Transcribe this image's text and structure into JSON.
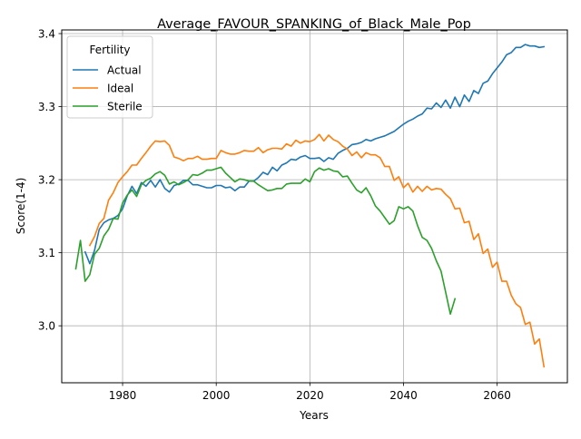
{
  "chart_data": {
    "type": "line",
    "title": "Average_FAVOUR_SPANKING_of_Black_Male_Pop",
    "xlabel": "Years",
    "ylabel": "Score(1-4)",
    "xlim": [
      1967,
      2075
    ],
    "ylim": [
      2.922,
      3.405
    ],
    "x_ticks": [
      1980,
      2000,
      2020,
      2040,
      2060
    ],
    "y_ticks": [
      3.0,
      3.1,
      3.2,
      3.3,
      3.4
    ],
    "x_tick_labels": [
      "1980",
      "2000",
      "2020",
      "2040",
      "2060"
    ],
    "y_tick_labels": [
      "3.0",
      "3.1",
      "3.2",
      "3.3",
      "3.4"
    ],
    "grid": true,
    "legend": {
      "title": "Fertility",
      "placement": "top-left"
    },
    "series": [
      {
        "name": "Actual",
        "color": "#1f77b4",
        "x": [
          1972,
          1973,
          1974,
          1975,
          1976,
          1977,
          1978,
          1979,
          1980,
          1981,
          1982,
          1983,
          1984,
          1985,
          1986,
          1987,
          1988,
          1989,
          1990,
          1991,
          1992,
          1993,
          1994,
          1995,
          1996,
          1997,
          1998,
          1999,
          2000,
          2001,
          2002,
          2003,
          2004,
          2005,
          2006,
          2007,
          2008,
          2009,
          2010,
          2011,
          2012,
          2013,
          2014,
          2015,
          2016,
          2017,
          2018,
          2019,
          2020,
          2021,
          2022,
          2023,
          2024,
          2025,
          2026,
          2027,
          2028,
          2029,
          2030,
          2031,
          2032,
          2033,
          2034,
          2035,
          2036,
          2037,
          2038,
          2039,
          2040,
          2041,
          2042,
          2043,
          2044,
          2045,
          2046,
          2047,
          2048,
          2049,
          2050,
          2051,
          2052,
          2053,
          2054,
          2055,
          2056,
          2057,
          2058,
          2059,
          2060,
          2061,
          2062,
          2063,
          2064,
          2065,
          2066,
          2067,
          2068,
          2069,
          2070
        ],
        "values": [
          3.101,
          3.085,
          3.103,
          3.132,
          3.141,
          3.145,
          3.147,
          3.151,
          3.16,
          3.178,
          3.191,
          3.181,
          3.196,
          3.191,
          3.199,
          3.19,
          3.2,
          3.188,
          3.183,
          3.192,
          3.194,
          3.199,
          3.199,
          3.193,
          3.193,
          3.191,
          3.189,
          3.189,
          3.192,
          3.192,
          3.189,
          3.19,
          3.185,
          3.19,
          3.19,
          3.198,
          3.198,
          3.203,
          3.21,
          3.207,
          3.217,
          3.212,
          3.22,
          3.223,
          3.228,
          3.227,
          3.231,
          3.233,
          3.229,
          3.229,
          3.23,
          3.225,
          3.23,
          3.228,
          3.236,
          3.24,
          3.243,
          3.248,
          3.249,
          3.251,
          3.255,
          3.253,
          3.256,
          3.258,
          3.26,
          3.263,
          3.266,
          3.271,
          3.276,
          3.28,
          3.283,
          3.287,
          3.29,
          3.298,
          3.297,
          3.305,
          3.299,
          3.309,
          3.298,
          3.313,
          3.3,
          3.316,
          3.307,
          3.322,
          3.318,
          3.332,
          3.335,
          3.345,
          3.353,
          3.361,
          3.371,
          3.374,
          3.381,
          3.381,
          3.385,
          3.383,
          3.383,
          3.381,
          3.382
        ]
      },
      {
        "name": "Ideal",
        "color": "#ff7f0e",
        "x": [
          1973,
          1974,
          1975,
          1976,
          1977,
          1978,
          1979,
          1980,
          1981,
          1982,
          1983,
          1984,
          1985,
          1986,
          1987,
          1988,
          1989,
          1990,
          1991,
          1992,
          1993,
          1994,
          1995,
          1996,
          1997,
          1998,
          1999,
          2000,
          2001,
          2002,
          2003,
          2004,
          2005,
          2006,
          2007,
          2008,
          2009,
          2010,
          2011,
          2012,
          2013,
          2014,
          2015,
          2016,
          2017,
          2018,
          2019,
          2020,
          2021,
          2022,
          2023,
          2024,
          2025,
          2026,
          2027,
          2028,
          2029,
          2030,
          2031,
          2032,
          2033,
          2034,
          2035,
          2036,
          2037,
          2038,
          2039,
          2040,
          2041,
          2042,
          2043,
          2044,
          2045,
          2046,
          2047,
          2048,
          2049,
          2050,
          2051,
          2052,
          2053,
          2054,
          2055,
          2056,
          2057,
          2058,
          2059,
          2060,
          2061,
          2062,
          2063,
          2064,
          2065,
          2066,
          2067,
          2068,
          2069,
          2070
        ],
        "values": [
          3.11,
          3.122,
          3.14,
          3.147,
          3.172,
          3.182,
          3.196,
          3.204,
          3.211,
          3.22,
          3.22,
          3.229,
          3.237,
          3.246,
          3.253,
          3.252,
          3.253,
          3.247,
          3.231,
          3.229,
          3.226,
          3.229,
          3.229,
          3.232,
          3.228,
          3.228,
          3.229,
          3.229,
          3.24,
          3.237,
          3.235,
          3.235,
          3.237,
          3.24,
          3.239,
          3.239,
          3.244,
          3.237,
          3.241,
          3.243,
          3.243,
          3.242,
          3.249,
          3.246,
          3.254,
          3.25,
          3.253,
          3.252,
          3.255,
          3.262,
          3.253,
          3.261,
          3.255,
          3.252,
          3.246,
          3.242,
          3.233,
          3.238,
          3.23,
          3.237,
          3.234,
          3.234,
          3.23,
          3.218,
          3.218,
          3.199,
          3.204,
          3.189,
          3.195,
          3.183,
          3.191,
          3.184,
          3.191,
          3.186,
          3.188,
          3.187,
          3.18,
          3.174,
          3.16,
          3.161,
          3.141,
          3.143,
          3.118,
          3.126,
          3.099,
          3.105,
          3.08,
          3.087,
          3.061,
          3.061,
          3.042,
          3.03,
          3.025,
          3.002,
          3.005,
          2.975,
          2.982,
          2.944
        ]
      },
      {
        "name": "Sterile",
        "color": "#2ca02c",
        "x": [
          1970,
          1971,
          1972,
          1973,
          1974,
          1975,
          1976,
          1977,
          1978,
          1979,
          1980,
          1981,
          1982,
          1983,
          1984,
          1985,
          1986,
          1987,
          1988,
          1989,
          1990,
          1991,
          1992,
          1993,
          1994,
          1995,
          1996,
          1997,
          1998,
          1999,
          2000,
          2001,
          2002,
          2003,
          2004,
          2005,
          2006,
          2007,
          2008,
          2009,
          2010,
          2011,
          2012,
          2013,
          2014,
          2015,
          2016,
          2017,
          2018,
          2019,
          2020,
          2021,
          2022,
          2023,
          2024,
          2025,
          2026,
          2027,
          2028,
          2029,
          2030,
          2031,
          2032,
          2033,
          2034,
          2035,
          2036,
          2037,
          2038,
          2039,
          2040,
          2041,
          2042,
          2043,
          2044,
          2045,
          2046,
          2047,
          2048,
          2049,
          2050,
          2051
        ],
        "values": [
          3.078,
          3.117,
          3.061,
          3.07,
          3.098,
          3.106,
          3.123,
          3.132,
          3.147,
          3.146,
          3.168,
          3.179,
          3.186,
          3.177,
          3.193,
          3.199,
          3.202,
          3.208,
          3.211,
          3.206,
          3.194,
          3.197,
          3.193,
          3.196,
          3.2,
          3.207,
          3.206,
          3.209,
          3.213,
          3.213,
          3.215,
          3.217,
          3.209,
          3.203,
          3.197,
          3.201,
          3.2,
          3.198,
          3.198,
          3.193,
          3.189,
          3.185,
          3.186,
          3.188,
          3.188,
          3.194,
          3.195,
          3.195,
          3.195,
          3.201,
          3.197,
          3.211,
          3.216,
          3.213,
          3.215,
          3.212,
          3.211,
          3.204,
          3.205,
          3.195,
          3.186,
          3.182,
          3.189,
          3.178,
          3.164,
          3.157,
          3.148,
          3.139,
          3.144,
          3.163,
          3.16,
          3.163,
          3.157,
          3.137,
          3.121,
          3.117,
          3.106,
          3.089,
          3.075,
          3.046,
          3.016,
          3.037
        ]
      }
    ]
  }
}
